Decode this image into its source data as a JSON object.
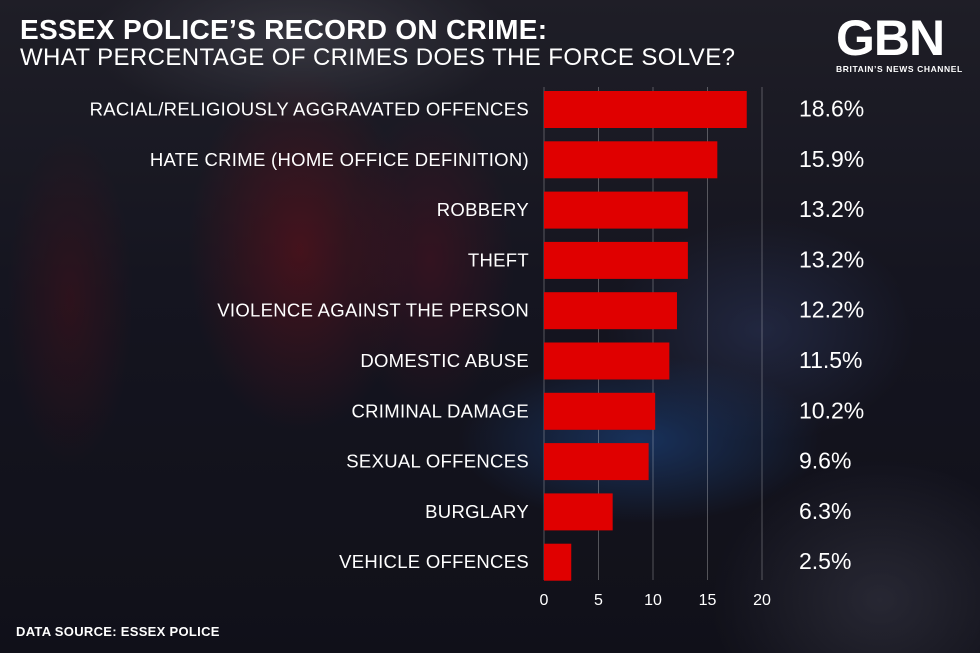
{
  "title": "ESSEX POLICE’S RECORD ON CRIME:",
  "subtitle": "WHAT PERCENTAGE OF CRIMES DOES THE FORCE SOLVE?",
  "logo": {
    "mark": "GBN",
    "tagline": "BRITAIN’S NEWS CHANNEL"
  },
  "source": "DATA SOURCE: ESSEX POLICE",
  "colors": {
    "bar": "#e00000",
    "text": "#ffffff"
  },
  "chart_data": {
    "type": "bar",
    "orientation": "horizontal",
    "categories": [
      "RACIAL/RELIGIOUSLY AGGRAVATED OFFENCES",
      "HATE CRIME (HOME OFFICE DEFINITION)",
      "ROBBERY",
      "THEFT",
      "VIOLENCE AGAINST THE PERSON",
      "DOMESTIC ABUSE",
      "CRIMINAL DAMAGE",
      "SEXUAL OFFENCES",
      "BURGLARY",
      "VEHICLE OFFENCES"
    ],
    "values": [
      18.6,
      15.9,
      13.2,
      13.2,
      12.2,
      11.5,
      10.2,
      9.6,
      6.3,
      2.5
    ],
    "value_labels": [
      "18.6%",
      "15.9%",
      "13.2%",
      "13.2%",
      "12.2%",
      "11.5%",
      "10.2%",
      "9.6%",
      "6.3%",
      "2.5%"
    ],
    "xticks": [
      0,
      5,
      10,
      15,
      20
    ],
    "xlim": [
      0,
      20
    ],
    "grid": true,
    "title": "ESSEX POLICE’S RECORD ON CRIME:",
    "subtitle": "WHAT PERCENTAGE OF CRIMES DOES THE FORCE SOLVE?",
    "xlabel": "",
    "ylabel": ""
  }
}
